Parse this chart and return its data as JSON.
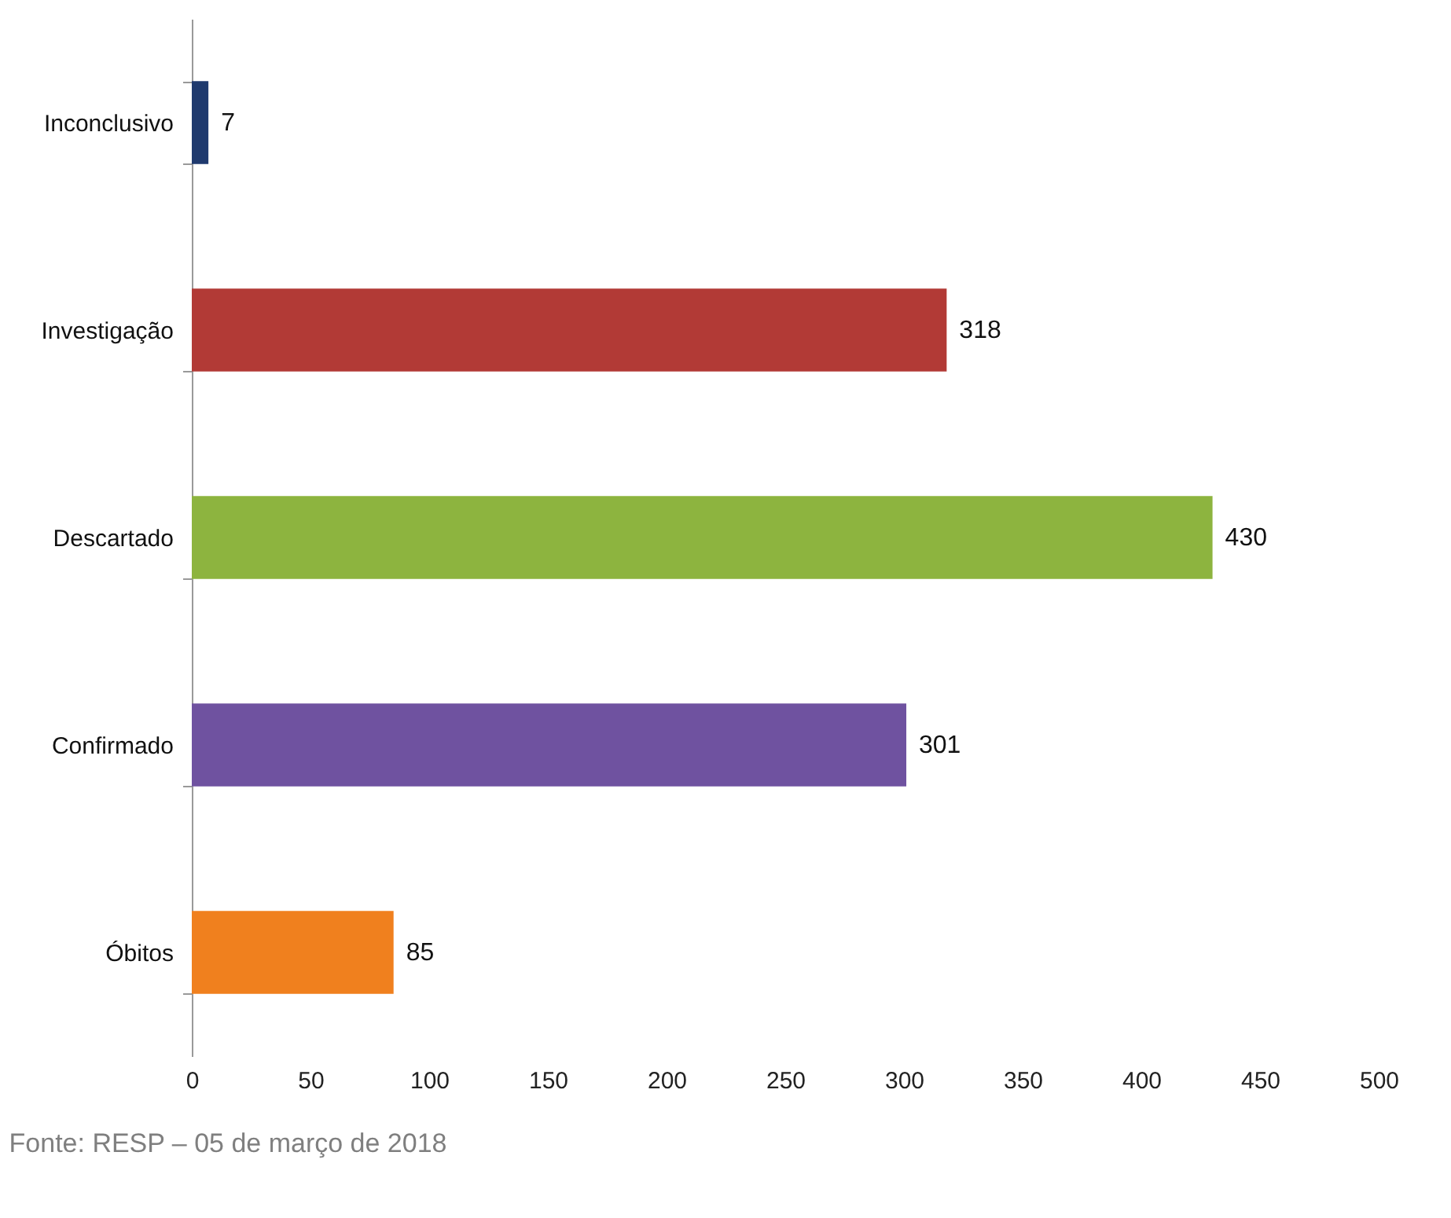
{
  "chart_data": {
    "type": "bar",
    "orientation": "horizontal",
    "categories": [
      "Inconclusivo",
      "Investigação",
      "Descartado",
      "Confirmado",
      "Óbitos"
    ],
    "values": [
      7,
      318,
      430,
      301,
      85
    ],
    "colors": [
      "#1f3a6e",
      "#b23a36",
      "#8db43f",
      "#6f52a0",
      "#f0801e"
    ],
    "xlim": [
      0,
      500
    ],
    "xticks": [
      0,
      50,
      100,
      150,
      200,
      250,
      300,
      350,
      400,
      450,
      500
    ],
    "data_labels": true,
    "grid": false,
    "annotations": [
      "Fonte: RESP – 05 de março de 2018"
    ]
  }
}
